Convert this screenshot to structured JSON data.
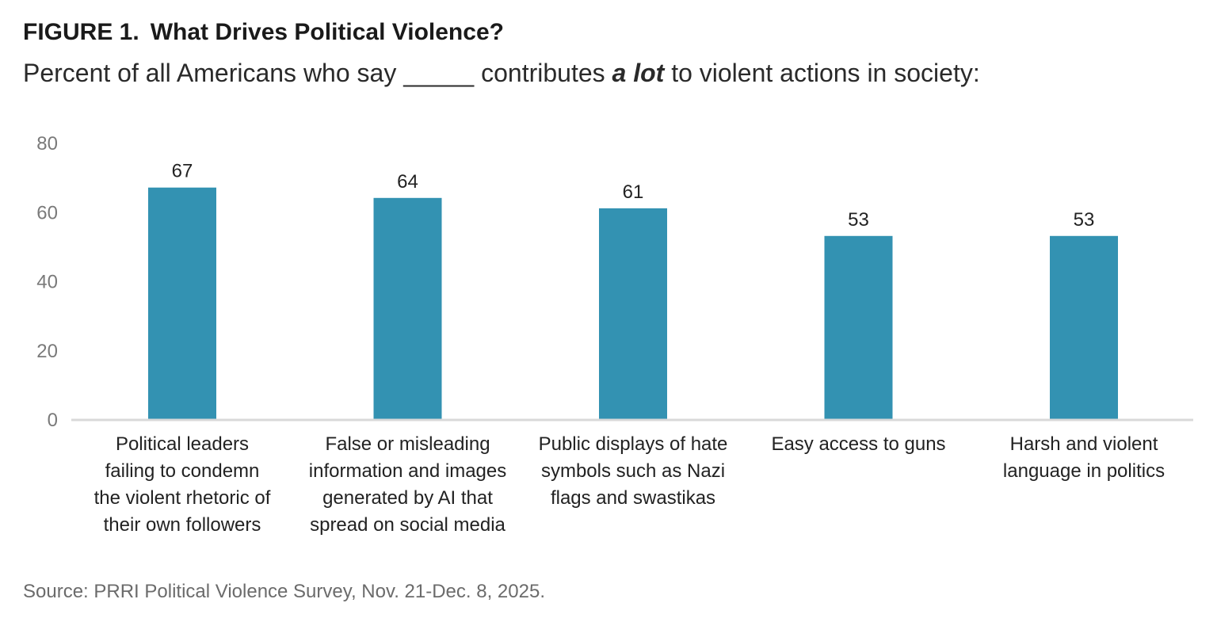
{
  "figure": {
    "label": "FIGURE 1.",
    "title": "What Drives Political Violence?",
    "subtitle_before": "Percent of all Americans who say _____ contributes ",
    "subtitle_emphasis": "a lot",
    "subtitle_after": " to violent actions in society:",
    "source": "Source: PRRI Political Violence Survey, Nov. 21-Dec. 8, 2025."
  },
  "chart_data": {
    "type": "bar",
    "categories": [
      [
        "Political leaders",
        "failing to condemn",
        "the violent rhetoric of",
        "their own followers"
      ],
      [
        "False or misleading",
        "information and images",
        "generated by AI that",
        "spread on social media"
      ],
      [
        "Public displays of hate",
        "symbols such as Nazi",
        "flags and swastikas"
      ],
      [
        "Easy access to guns"
      ],
      [
        "Harsh and violent",
        "language in politics"
      ]
    ],
    "values": [
      67,
      64,
      61,
      53,
      53
    ],
    "ylim": [
      0,
      80
    ],
    "yticks": [
      0,
      20,
      40,
      60,
      80
    ],
    "grid": false,
    "data_labels": true,
    "colors": {
      "bar": "#3392b2",
      "axis_line": "#d9d9d9",
      "tick_label": "#7a7a7a",
      "value_label": "#222222",
      "category_label": "#222222"
    }
  }
}
